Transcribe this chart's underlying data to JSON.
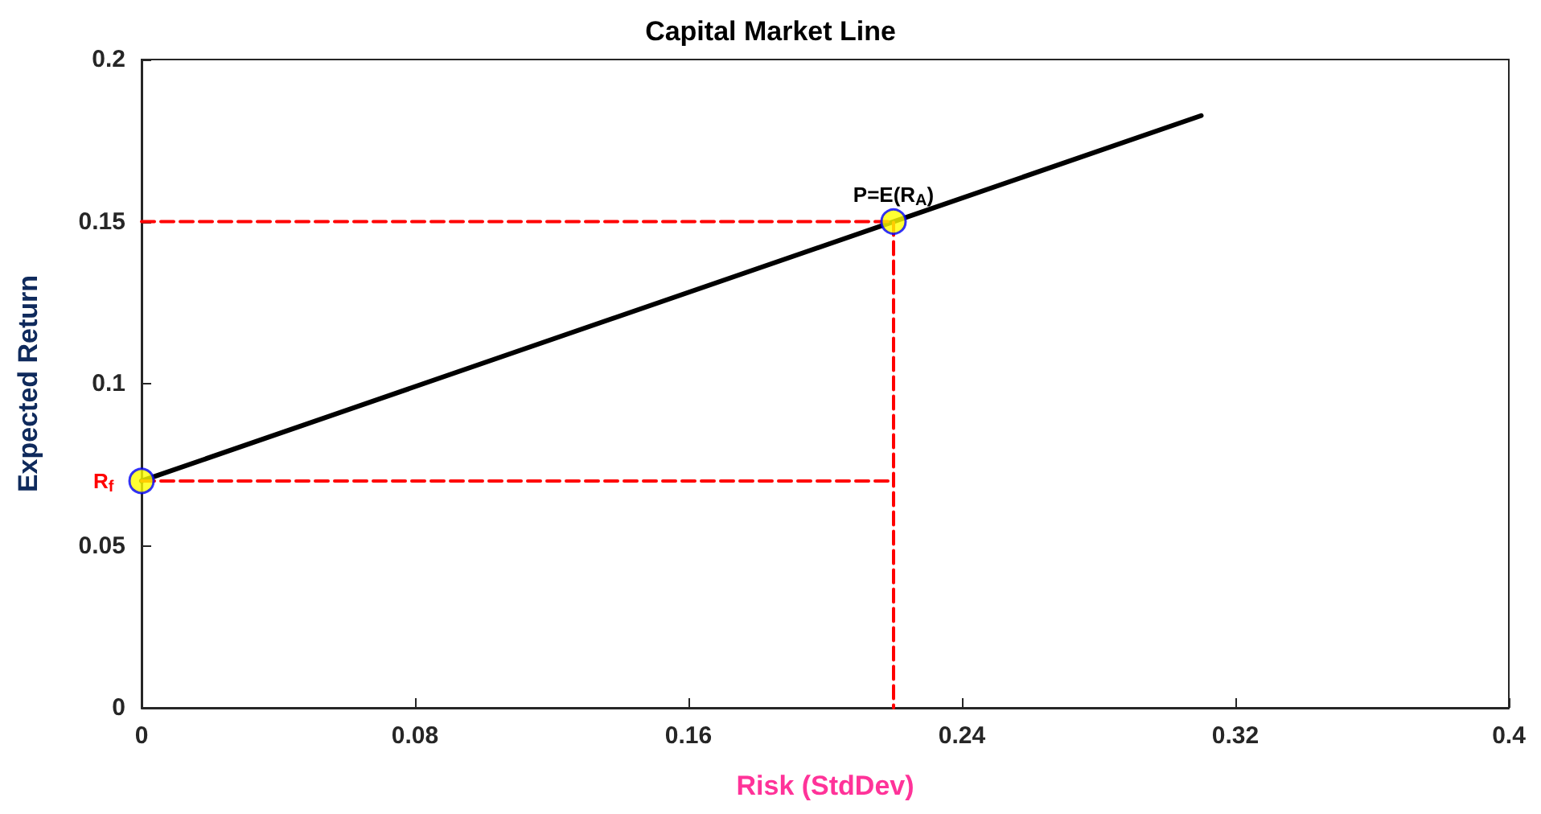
{
  "chart_data": {
    "type": "line",
    "title": "Capital Market Line",
    "xlabel": "Risk (StdDev)",
    "ylabel": "Expected Return",
    "xlim": [
      0,
      0.4
    ],
    "xticks": [
      0,
      0.08,
      0.16,
      0.24,
      0.32,
      0.4
    ],
    "ylim": [
      0,
      0.2
    ],
    "yticks": [
      0,
      0.05,
      0.1,
      0.15,
      0.2
    ],
    "grid": false,
    "series": [
      {
        "color": "#000000",
        "x": [
          0,
          0.31
        ],
        "values": [
          0.07,
          0.1827
        ],
        "line_style": "solid"
      },
      {
        "color": "#ff0000",
        "x": [
          0,
          0.22,
          0.22
        ],
        "values": [
          0.15,
          0.15,
          0
        ],
        "line_style": "dashed"
      },
      {
        "color": "#ff0000",
        "x": [
          0,
          0.22
        ],
        "values": [
          0.07,
          0.07
        ],
        "line_style": "dashed"
      },
      {
        "type": "scatter",
        "color": "#ffff00",
        "x": [
          0,
          0.22
        ],
        "values": [
          0.07,
          0.15
        ],
        "marker": "circle"
      }
    ],
    "annotations": [
      {
        "text": "P=E(R$_{A}$)",
        "x": 0.22,
        "y": 0.15
      },
      {
        "text": "R$_{f}$",
        "x": 0,
        "y": 0.07
      }
    ]
  }
}
